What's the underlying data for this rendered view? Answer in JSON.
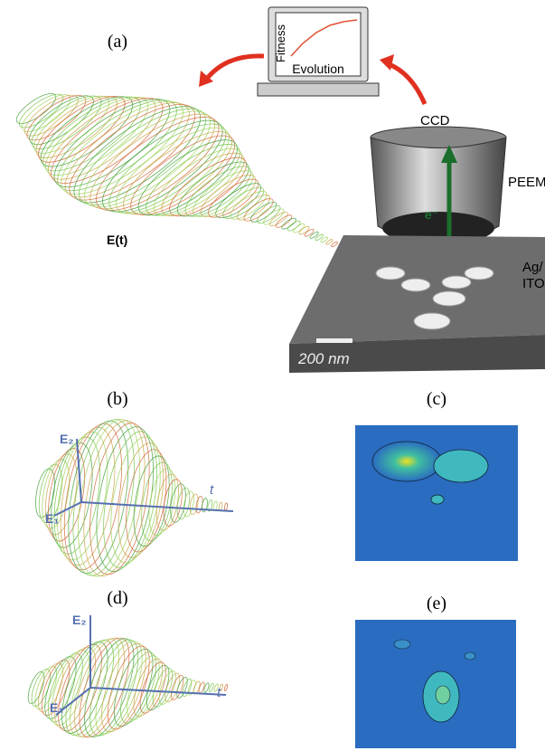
{
  "figure": {
    "panel_a": {
      "label": "(a)",
      "monitor_y_label": "Fitness",
      "monitor_x_label": "Evolution",
      "ccd": "CCD",
      "peem": "PEEM",
      "electron": "e⁻",
      "sample_line1": "Ag/",
      "sample_line2": "ITO",
      "scale_bar": "200 nm",
      "field": "E(t)"
    },
    "panel_b": {
      "label": "(b)",
      "e2": "E₂",
      "e1": "E₁",
      "t": "t"
    },
    "panel_c": {
      "label": "(c)"
    },
    "panel_d": {
      "label": "(d)",
      "e2": "E₂",
      "e1": "E₁",
      "t": "t"
    },
    "panel_e": {
      "label": "(e)"
    }
  }
}
